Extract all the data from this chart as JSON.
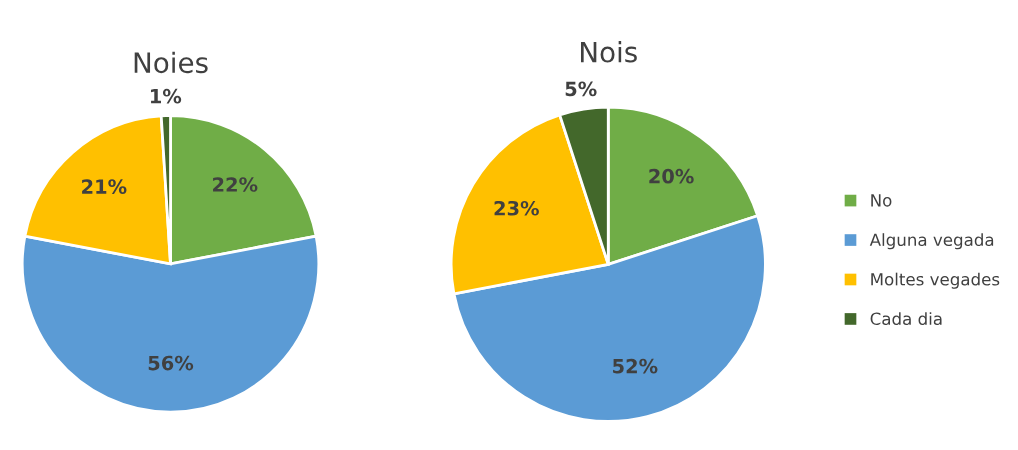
{
  "chart_data": [
    {
      "type": "pie",
      "title": "Noies",
      "categories": [
        "No",
        "Alguna vegada",
        "Moltes vegades",
        "Cada dia"
      ],
      "values": [
        22,
        56,
        21,
        1
      ],
      "colors": [
        "#70ad47",
        "#5b9bd5",
        "#ffc000",
        "#43682b"
      ],
      "value_labels": [
        "22%",
        "56%",
        "21%",
        "1%"
      ],
      "legend": "right"
    },
    {
      "type": "pie",
      "title": "Nois",
      "categories": [
        null,
        null,
        null,
        null
      ],
      "values": [
        20,
        52,
        23,
        5
      ],
      "colors": [
        "#70ad47",
        "#5b9bd5",
        "#ffc000",
        "#43682b"
      ],
      "value_labels": [
        "20%",
        "52%",
        "23%",
        "5%"
      ],
      "legend": false
    }
  ]
}
